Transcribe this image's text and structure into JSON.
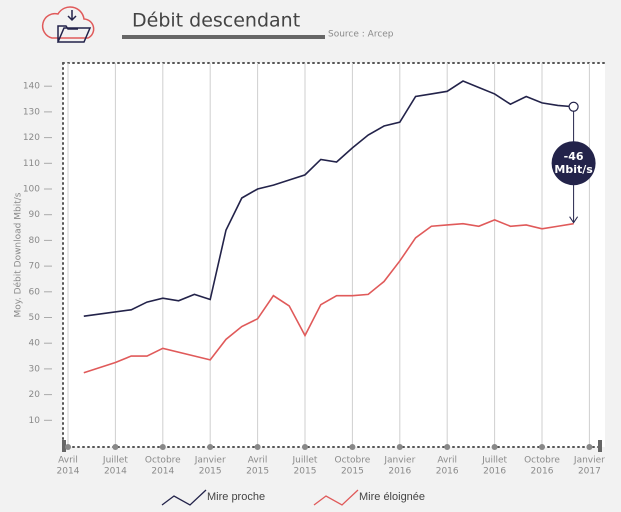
{
  "chart_data": {
    "type": "line",
    "title": "Débit descendant",
    "subtitle": "Source : Arcep",
    "ylabel": "Moy. Débit Download Mbit/s",
    "xlim": [
      0,
      33
    ],
    "ylim": [
      0,
      150
    ],
    "yticks": [
      10,
      20,
      30,
      40,
      50,
      60,
      70,
      80,
      90,
      100,
      110,
      120,
      130,
      140
    ],
    "xticks": [
      {
        "value": 0,
        "label": [
          "Avril",
          "2014"
        ]
      },
      {
        "value": 3,
        "label": [
          "Juillet",
          "2014"
        ]
      },
      {
        "value": 6,
        "label": [
          "Octobre",
          "2014"
        ]
      },
      {
        "value": 9,
        "label": [
          "Janvier",
          "2015"
        ]
      },
      {
        "value": 12,
        "label": [
          "Avril",
          "2015"
        ]
      },
      {
        "value": 15,
        "label": [
          "Juillet",
          "2015"
        ]
      },
      {
        "value": 18,
        "label": [
          "Octobre",
          "2015"
        ]
      },
      {
        "value": 21,
        "label": [
          "Janvier",
          "2016"
        ]
      },
      {
        "value": 24,
        "label": [
          "Avril",
          "2016"
        ]
      },
      {
        "value": 27,
        "label": [
          "Juillet",
          "2016"
        ]
      },
      {
        "value": 30,
        "label": [
          "Octobre",
          "2016"
        ]
      },
      {
        "value": 33,
        "label": [
          "Janvier",
          "2017"
        ]
      }
    ],
    "grid": true,
    "series": [
      {
        "name": "Mire proche",
        "color": "#23234a",
        "x": [
          1,
          4,
          5,
          6,
          7,
          8,
          9,
          10,
          11,
          12,
          13,
          14,
          15,
          16,
          17,
          18,
          19,
          20,
          21,
          22,
          23,
          24,
          25,
          26,
          27,
          28,
          29,
          30,
          31,
          32
        ],
        "values": [
          50.5,
          53,
          56,
          57.5,
          56.5,
          59,
          57,
          84,
          96.5,
          100,
          101.5,
          103.5,
          105.5,
          111.5,
          110.5,
          116,
          121,
          124.5,
          126,
          136,
          137,
          138,
          142,
          139.5,
          137,
          133,
          136,
          133.5,
          132.5,
          132
        ]
      },
      {
        "name": "Mire éloignée",
        "color": "#e05a5a",
        "x": [
          1,
          2,
          3,
          4,
          5,
          6,
          9,
          10,
          11,
          12,
          13,
          14,
          15,
          16,
          17,
          18,
          19,
          20,
          21,
          22,
          23,
          24,
          25,
          26,
          27,
          28,
          29,
          30,
          31,
          32
        ],
        "values": [
          28.5,
          30.5,
          32.5,
          35,
          35,
          38,
          33.5,
          41.5,
          46.5,
          49.5,
          58.5,
          54.5,
          43,
          55,
          58.5,
          58.5,
          59,
          64,
          72,
          81,
          85.5,
          86,
          86.5,
          85.5,
          88,
          85.5,
          86,
          84.5,
          85.5,
          86.5
        ]
      }
    ],
    "annotation": {
      "lines": [
        "-46",
        "Mbit/s"
      ]
    }
  }
}
